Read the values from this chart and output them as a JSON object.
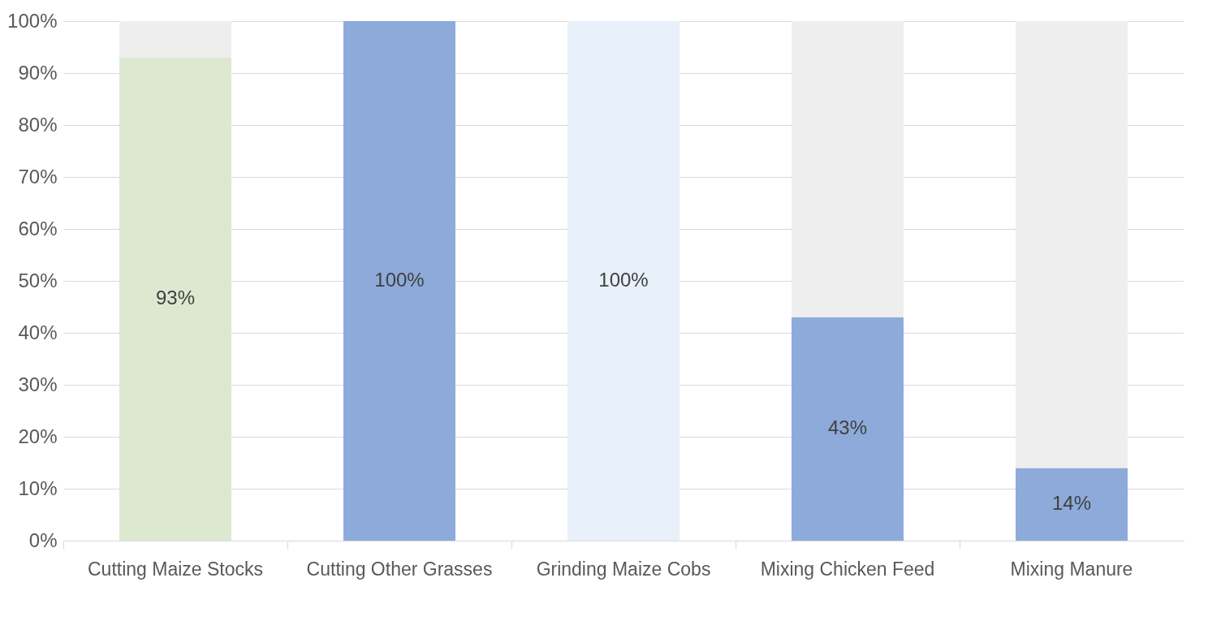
{
  "chart_data": {
    "type": "bar",
    "stacked": true,
    "categories": [
      "Cutting Maize Stocks",
      "Cutting Other Grasses",
      "Grinding Maize Cobs",
      "Mixing Chicken Feed",
      "Mixing Manure"
    ],
    "series": [
      {
        "colors": [
          "#dce9d0",
          "#8eaadb",
          "#e8f0f9",
          "#8eaadb",
          "#8eaadb"
        ],
        "values": [
          93,
          100,
          100,
          43,
          14
        ],
        "value_labels": [
          "93%",
          "100%",
          "100%",
          "43%",
          "14%"
        ]
      },
      {
        "color": "#eeeeee",
        "values": [
          7,
          0,
          0,
          57,
          86
        ]
      }
    ],
    "ylim": [
      0,
      100
    ],
    "yticks": [
      {
        "value": 0,
        "label": "0%"
      },
      {
        "value": 10,
        "label": "10%"
      },
      {
        "value": 20,
        "label": "20%"
      },
      {
        "value": 30,
        "label": "30%"
      },
      {
        "value": 40,
        "label": "40%"
      },
      {
        "value": 50,
        "label": "50%"
      },
      {
        "value": 60,
        "label": "60%"
      },
      {
        "value": 70,
        "label": "70%"
      },
      {
        "value": 80,
        "label": "80%"
      },
      {
        "value": 90,
        "label": "90%"
      },
      {
        "value": 100,
        "label": "100%"
      }
    ],
    "grid": "y"
  }
}
